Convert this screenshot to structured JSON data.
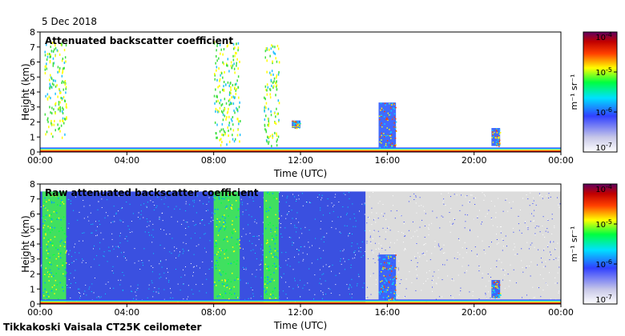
{
  "date_label": "5 Dec 2018",
  "footer": "Tikkakoski Vaisala CT25K ceilometer",
  "colors": {
    "colormap": [
      "#ffffff",
      "#d8d8e8",
      "#3040ff",
      "#00e0ff",
      "#00ff40",
      "#ffff00",
      "#ff4000",
      "#c00000",
      "#600060"
    ],
    "no_data_grey": "#dcdcdc"
  },
  "chart_data": [
    {
      "type": "heatmap",
      "title": "Attenuated backscatter coefficient",
      "xlabel": "Time (UTC)",
      "ylabel": "Height (km)",
      "x_ticks": [
        "00:00",
        "04:00",
        "08:00",
        "12:00",
        "16:00",
        "20:00",
        "00:00"
      ],
      "x_range_hours": [
        0,
        24
      ],
      "y_ticks": [
        "0",
        "1",
        "2",
        "3",
        "4",
        "5",
        "6",
        "7",
        "8"
      ],
      "ylim": [
        0,
        8
      ],
      "colorbar": {
        "label": "m⁻¹ sr⁻¹",
        "scale": "log",
        "ticks": [
          {
            "base": "10",
            "exp": "-4"
          },
          {
            "base": "10",
            "exp": "-5"
          },
          {
            "base": "10",
            "exp": "-6"
          },
          {
            "base": "10",
            "exp": "-7"
          }
        ],
        "range": [
          1e-07,
          0.0001
        ]
      },
      "features": [
        {
          "kind": "surface_layer",
          "from_h": 0,
          "to_h": 24,
          "top_km": 0.3
        },
        {
          "kind": "sparse_column",
          "from_h": 0.2,
          "to_h": 1.2,
          "base_km": 1.0,
          "top_km": 7.4
        },
        {
          "kind": "sparse_column",
          "from_h": 8.0,
          "to_h": 9.2,
          "base_km": 0.5,
          "top_km": 7.4
        },
        {
          "kind": "sparse_column",
          "from_h": 10.3,
          "to_h": 11.0,
          "base_km": 0.4,
          "top_km": 7.2
        },
        {
          "kind": "cloud",
          "from_h": 11.6,
          "to_h": 12.0,
          "base_km": 1.6,
          "top_km": 2.1
        },
        {
          "kind": "cloud",
          "from_h": 15.6,
          "to_h": 16.4,
          "base_km": 0.3,
          "top_km": 3.3
        },
        {
          "kind": "cloud",
          "from_h": 20.8,
          "to_h": 21.2,
          "base_km": 0.4,
          "top_km": 1.6
        }
      ]
    },
    {
      "type": "heatmap",
      "title": "Raw attenuated backscatter coefficient",
      "xlabel": "Time (UTC)",
      "ylabel": "Height (km)",
      "x_ticks": [
        "00:00",
        "04:00",
        "08:00",
        "12:00",
        "16:00",
        "20:00",
        "00:00"
      ],
      "x_range_hours": [
        0,
        24
      ],
      "y_ticks": [
        "0",
        "1",
        "2",
        "3",
        "4",
        "5",
        "6",
        "7",
        "8"
      ],
      "ylim": [
        0,
        8
      ],
      "colorbar": {
        "label": "m⁻¹ sr⁻¹",
        "scale": "log",
        "ticks": [
          {
            "base": "10",
            "exp": "-4"
          },
          {
            "base": "10",
            "exp": "-5"
          },
          {
            "base": "10",
            "exp": "-6"
          },
          {
            "base": "10",
            "exp": "-7"
          }
        ],
        "range": [
          1e-07,
          0.0001
        ]
      },
      "features": [
        {
          "kind": "noise_field",
          "from_h": 0,
          "to_h": 15,
          "top_km": 7.5,
          "level": "blue"
        },
        {
          "kind": "noise_field",
          "from_h": 15,
          "to_h": 24,
          "top_km": 7.5,
          "level": "grey"
        },
        {
          "kind": "enhanced_column",
          "from_h": 0.1,
          "to_h": 1.2,
          "top_km": 7.5,
          "level": "green"
        },
        {
          "kind": "enhanced_column",
          "from_h": 8.0,
          "to_h": 9.2,
          "top_km": 7.5,
          "level": "green"
        },
        {
          "kind": "enhanced_column",
          "from_h": 10.3,
          "to_h": 11.0,
          "top_km": 7.5,
          "level": "green"
        },
        {
          "kind": "surface_layer",
          "from_h": 0,
          "to_h": 24,
          "top_km": 0.3
        },
        {
          "kind": "cloud",
          "from_h": 15.6,
          "to_h": 16.4,
          "base_km": 0.3,
          "top_km": 3.3
        },
        {
          "kind": "cloud",
          "from_h": 20.8,
          "to_h": 21.2,
          "base_km": 0.4,
          "top_km": 1.6
        }
      ]
    }
  ]
}
